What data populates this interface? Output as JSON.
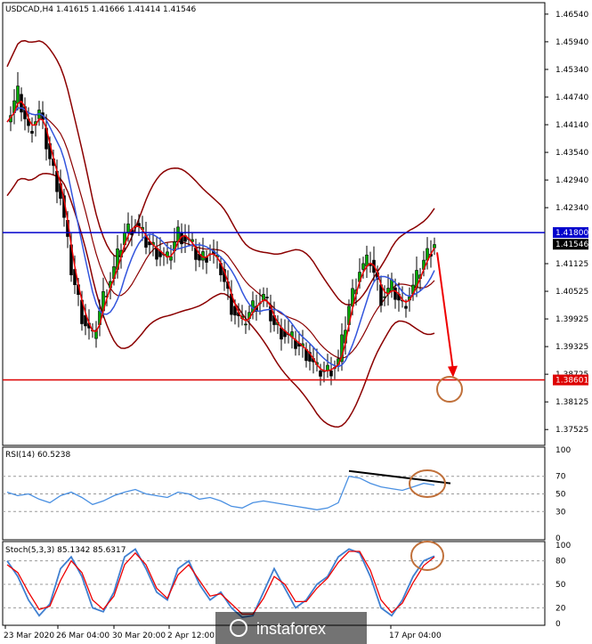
{
  "chart_data": {
    "type": "candlestick",
    "symbol_line": "USDCAD,H4  1.41615 1.41666 1.41414 1.41546",
    "price_axis": {
      "ylim": [
        1.3722,
        1.4675
      ],
      "ticks": [
        "1.46540",
        "1.45940",
        "1.45340",
        "1.44740",
        "1.44140",
        "1.43540",
        "1.42940",
        "1.42340",
        "1.41125",
        "1.40525",
        "1.39925",
        "1.39325",
        "1.38725",
        "1.38125",
        "1.37525"
      ]
    },
    "x_labels": [
      "23 Mar 2020",
      "26 Mar 04:00",
      "30 Mar 20:00",
      "2 Apr 12:00",
      "17 Apr 04:00"
    ],
    "levels": [
      {
        "label": "1.41800",
        "value": 1.418,
        "color": "#0000cc"
      },
      {
        "label": "1.38601",
        "value": 1.38601,
        "color": "#dd0000"
      }
    ],
    "current_price": {
      "label": "1.41546",
      "value": 1.41546
    },
    "price_path": [
      1.442,
      1.448,
      1.44,
      1.444,
      1.434,
      1.426,
      1.41,
      1.4,
      1.395,
      1.404,
      1.41,
      1.418,
      1.42,
      1.416,
      1.414,
      1.412,
      1.418,
      1.416,
      1.412,
      1.414,
      1.41,
      1.402,
      1.398,
      1.402,
      1.404,
      1.398,
      1.396,
      1.394,
      1.392,
      1.388,
      1.388,
      1.39,
      1.402,
      1.41,
      1.412,
      1.404,
      1.406,
      1.402,
      1.406,
      1.412,
      1.416
    ],
    "forecast_target": 1.3862,
    "rsi": {
      "label": "RSI(14) 60.5238",
      "ylim": [
        0,
        100
      ],
      "right_labels": [
        "100",
        "70",
        "50",
        "30",
        "0"
      ],
      "levels": [
        70,
        50,
        30
      ],
      "values": [
        52,
        48,
        50,
        44,
        40,
        48,
        52,
        46,
        38,
        42,
        48,
        52,
        55,
        50,
        48,
        46,
        52,
        50,
        44,
        46,
        42,
        36,
        34,
        40,
        42,
        40,
        38,
        36,
        34,
        32,
        34,
        40,
        70,
        68,
        62,
        58,
        56,
        54,
        58,
        62,
        60
      ],
      "trendline": [
        76,
        62
      ]
    },
    "stoch": {
      "label": "Stoch(5,3,3) 85.1342 85.6317",
      "ylim": [
        0,
        100
      ],
      "right_labels": [
        "100",
        "80",
        "50",
        "20",
        "0"
      ],
      "levels": [
        80,
        50,
        20
      ],
      "main": [
        80,
        60,
        30,
        10,
        25,
        70,
        85,
        60,
        20,
        15,
        40,
        85,
        95,
        70,
        40,
        30,
        70,
        80,
        50,
        30,
        40,
        20,
        8,
        10,
        40,
        70,
        45,
        20,
        30,
        50,
        60,
        85,
        95,
        90,
        60,
        20,
        10,
        30,
        60,
        80,
        86
      ],
      "signal": [
        75,
        65,
        40,
        18,
        22,
        55,
        80,
        65,
        30,
        18,
        35,
        75,
        90,
        75,
        45,
        32,
        62,
        75,
        55,
        35,
        38,
        25,
        12,
        12,
        32,
        60,
        50,
        28,
        28,
        45,
        58,
        78,
        92,
        92,
        68,
        30,
        14,
        26,
        52,
        74,
        85
      ]
    }
  },
  "watermark": "instaforex"
}
